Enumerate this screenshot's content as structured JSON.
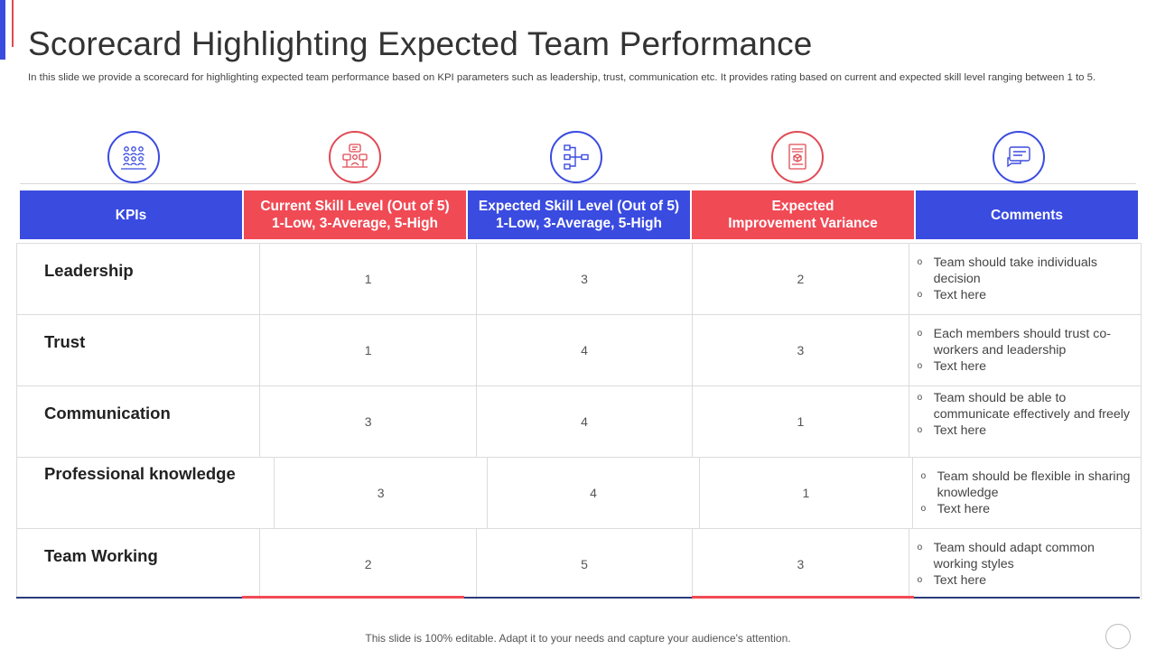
{
  "title": "Scorecard Highlighting Expected Team Performance",
  "subtitle": "In this slide we provide a scorecard for highlighting expected team performance based on KPI parameters such as leadership, trust, communication etc. It provides rating based on current and expected skill level ranging between 1 to 5.",
  "colors": {
    "blue": "#3a4be0",
    "red": "#f04a55"
  },
  "icons": [
    "team-icon",
    "collaboration-icon",
    "flowchart-icon",
    "document-icon",
    "chat-icon"
  ],
  "headers": [
    {
      "line1": "KPIs",
      "line2": ""
    },
    {
      "line1": "Current Skill Level (Out of 5)",
      "line2": "1-Low, 3-Average, 5-High"
    },
    {
      "line1": "Expected Skill Level (Out of 5)",
      "line2": "1-Low, 3-Average, 5-High"
    },
    {
      "line1": "Expected",
      "line2": "Improvement Variance"
    },
    {
      "line1": "Comments",
      "line2": ""
    }
  ],
  "rows": [
    {
      "kpi": "Leadership",
      "current": "1",
      "expected": "3",
      "variance": "2",
      "comments": [
        "Team should take individuals decision",
        "Text here"
      ]
    },
    {
      "kpi": "Trust",
      "current": "1",
      "expected": "4",
      "variance": "3",
      "comments": [
        "Each members should trust co-workers and leadership",
        "Text here"
      ]
    },
    {
      "kpi": "Communication",
      "current": "3",
      "expected": "4",
      "variance": "1",
      "comments": [
        "Team should be able to communicate effectively and freely",
        "Text here"
      ]
    },
    {
      "kpi": "Professional knowledge",
      "current": "3",
      "expected": "4",
      "variance": "1",
      "comments": [
        "Team should be flexible in sharing knowledge",
        "Text here"
      ]
    },
    {
      "kpi": "Team Working",
      "current": "2",
      "expected": "5",
      "variance": "3",
      "comments": [
        "Team should adapt common working styles",
        "Text here"
      ]
    }
  ],
  "bullet": "o",
  "footer": "This slide is 100% editable. Adapt it to your needs and capture your audience's attention."
}
